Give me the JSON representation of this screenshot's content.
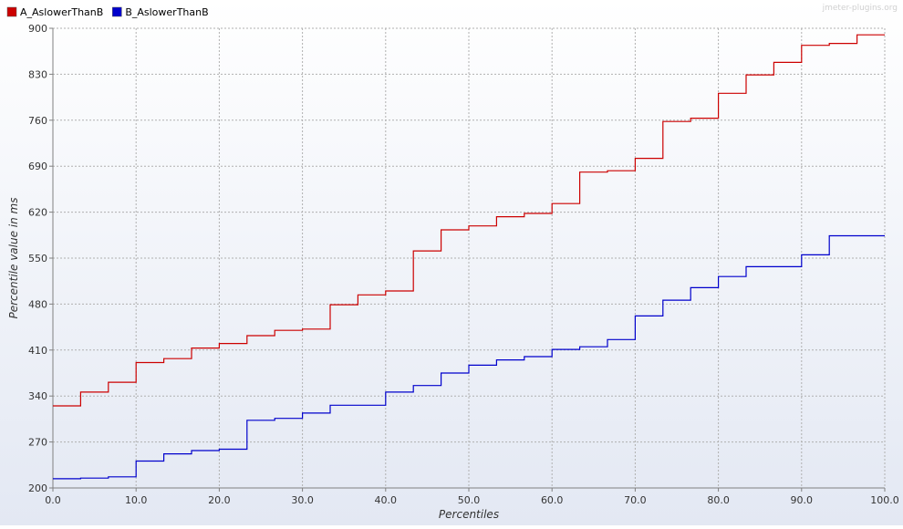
{
  "watermark": "jmeter-plugins.org",
  "colors": {
    "background_top": "#ffffff",
    "background_bottom": "#e3e8f3",
    "grid": "#b0b0b0",
    "axis": "#808080",
    "text": "#333333"
  },
  "chart_data": {
    "type": "line",
    "step": true,
    "xlabel": "Percentiles",
    "ylabel": "Percentile value in ms",
    "xlim": [
      0,
      100
    ],
    "ylim": [
      200,
      900
    ],
    "xticks": [
      "0.0",
      "10.0",
      "20.0",
      "30.0",
      "40.0",
      "50.0",
      "60.0",
      "70.0",
      "80.0",
      "90.0",
      "100.0"
    ],
    "yticks": [
      "200",
      "270",
      "340",
      "410",
      "480",
      "550",
      "620",
      "690",
      "760",
      "830",
      "900"
    ],
    "grid": true,
    "legend_position": "top-left",
    "series": [
      {
        "name": "A_AslowerThanB",
        "color": "#cc0000",
        "points": [
          [
            0,
            325
          ],
          [
            3.33,
            346
          ],
          [
            6.67,
            361
          ],
          [
            10,
            391
          ],
          [
            13.33,
            397
          ],
          [
            16.67,
            413
          ],
          [
            20,
            420
          ],
          [
            23.33,
            432
          ],
          [
            26.67,
            440
          ],
          [
            30,
            442
          ],
          [
            33.33,
            479
          ],
          [
            36.67,
            494
          ],
          [
            40,
            500
          ],
          [
            43.33,
            561
          ],
          [
            46.67,
            593
          ],
          [
            50,
            599
          ],
          [
            53.33,
            613
          ],
          [
            56.67,
            618
          ],
          [
            60,
            633
          ],
          [
            63.33,
            681
          ],
          [
            66.67,
            683
          ],
          [
            70,
            702
          ],
          [
            73.33,
            758
          ],
          [
            76.67,
            763
          ],
          [
            80,
            801
          ],
          [
            83.33,
            829
          ],
          [
            86.67,
            848
          ],
          [
            90,
            874
          ],
          [
            93.33,
            877
          ],
          [
            96.67,
            890
          ],
          [
            100,
            890
          ]
        ]
      },
      {
        "name": "B_AslowerThanB",
        "color": "#0000cc",
        "points": [
          [
            0,
            214
          ],
          [
            3.33,
            215
          ],
          [
            6.67,
            217
          ],
          [
            10,
            241
          ],
          [
            13.33,
            252
          ],
          [
            16.67,
            257
          ],
          [
            20,
            259
          ],
          [
            23.33,
            303
          ],
          [
            26.67,
            306
          ],
          [
            30,
            314
          ],
          [
            33.33,
            326
          ],
          [
            36.67,
            326
          ],
          [
            40,
            346
          ],
          [
            43.33,
            356
          ],
          [
            46.67,
            375
          ],
          [
            50,
            387
          ],
          [
            53.33,
            395
          ],
          [
            56.67,
            400
          ],
          [
            60,
            411
          ],
          [
            63.33,
            415
          ],
          [
            66.67,
            426
          ],
          [
            70,
            462
          ],
          [
            73.33,
            486
          ],
          [
            76.67,
            505
          ],
          [
            80,
            522
          ],
          [
            83.33,
            537
          ],
          [
            86.67,
            537
          ],
          [
            90,
            555
          ],
          [
            93.33,
            584
          ],
          [
            96.67,
            584
          ],
          [
            100,
            584
          ]
        ]
      }
    ]
  }
}
